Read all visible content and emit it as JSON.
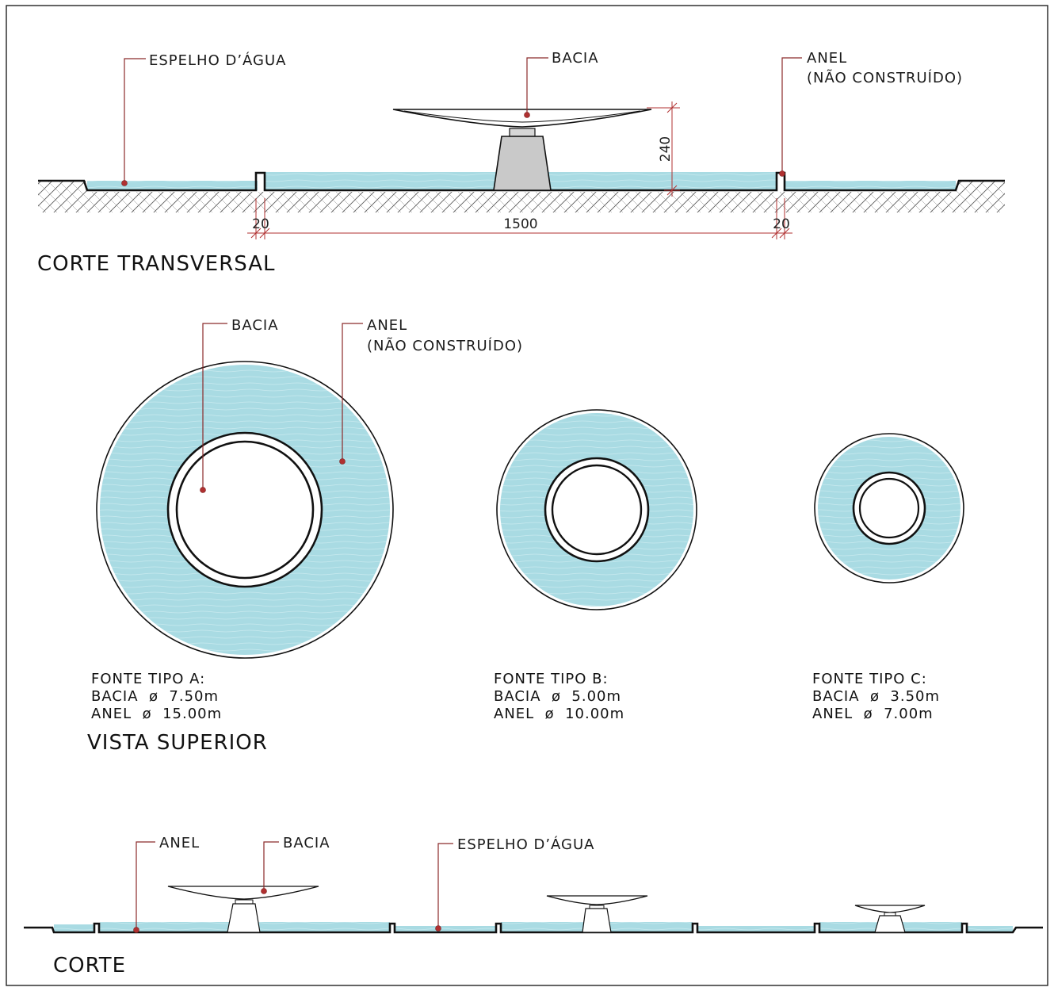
{
  "section_top": {
    "title": "CORTE TRANSVERSAL",
    "labels": {
      "espelho": "ESPELHO D’ÁGUA",
      "bacia": "BACIA",
      "anel_line1": "ANEL",
      "anel_line2": "(NÃO CONSTRUÍDO)"
    },
    "dimensions": {
      "height": "240",
      "wall_left": "20",
      "span": "1500",
      "wall_right": "20"
    }
  },
  "plan_view": {
    "title": "VISTA SUPERIOR",
    "labels": {
      "bacia": "BACIA",
      "anel_line1": "ANEL",
      "anel_line2": "(NÃO CONSTRUÍDO)"
    },
    "fountains": [
      {
        "name": "FONTE TIPO A:",
        "bacia": "BACIA  ø  7.50m",
        "anel": "ANEL  ø  15.00m"
      },
      {
        "name": "FONTE TIPO B:",
        "bacia": "BACIA  ø  5.00m",
        "anel": "ANEL  ø  10.00m"
      },
      {
        "name": "FONTE TIPO C:",
        "bacia": "BACIA  ø  3.50m",
        "anel": "ANEL  ø  7.00m"
      }
    ]
  },
  "section_bottom": {
    "title": "CORTE",
    "labels": {
      "anel": "ANEL",
      "bacia": "BACIA",
      "espelho": "ESPELHO D’ÁGUA"
    }
  },
  "colors": {
    "water": "#a9dbe3",
    "leader": "#8b2a2a",
    "marker": "#b03030",
    "outline": "#111111"
  }
}
